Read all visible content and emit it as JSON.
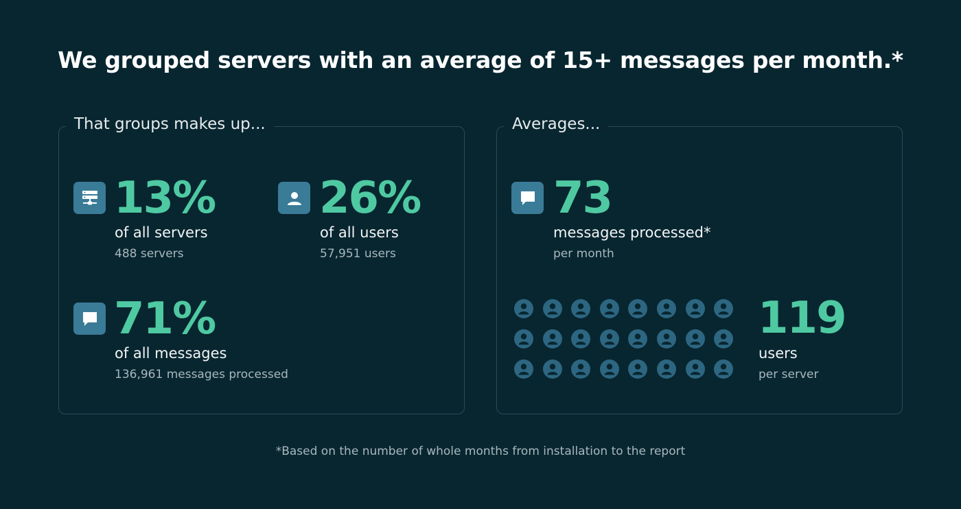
{
  "headline": "We grouped servers with an average of 15+ messages per month.*",
  "left_panel": {
    "title": "That groups makes up...",
    "stats": [
      {
        "icon": "server-icon",
        "value": "13%",
        "label": "of all servers",
        "detail": "488 servers"
      },
      {
        "icon": "user-icon",
        "value": "26%",
        "label": "of all users",
        "detail": "57,951 users"
      },
      {
        "icon": "message-icon",
        "value": "71%",
        "label": "of all messages",
        "detail": "136,961 messages processed"
      }
    ]
  },
  "right_panel": {
    "title": "Averages...",
    "messages": {
      "icon": "message-icon",
      "value": "73",
      "label": "messages processed*",
      "detail": "per month"
    },
    "users": {
      "icon": "people-grid-icon",
      "value": "119",
      "label": "users",
      "detail": "per server"
    }
  },
  "footnote": "*Based on the number of whole months from installation to the report",
  "colors": {
    "background": "#082630",
    "accent": "#4fc9a2",
    "icon_bg": "#3a7b97",
    "person_icon": "#2d6681",
    "panel_border": "#2c4a53"
  }
}
